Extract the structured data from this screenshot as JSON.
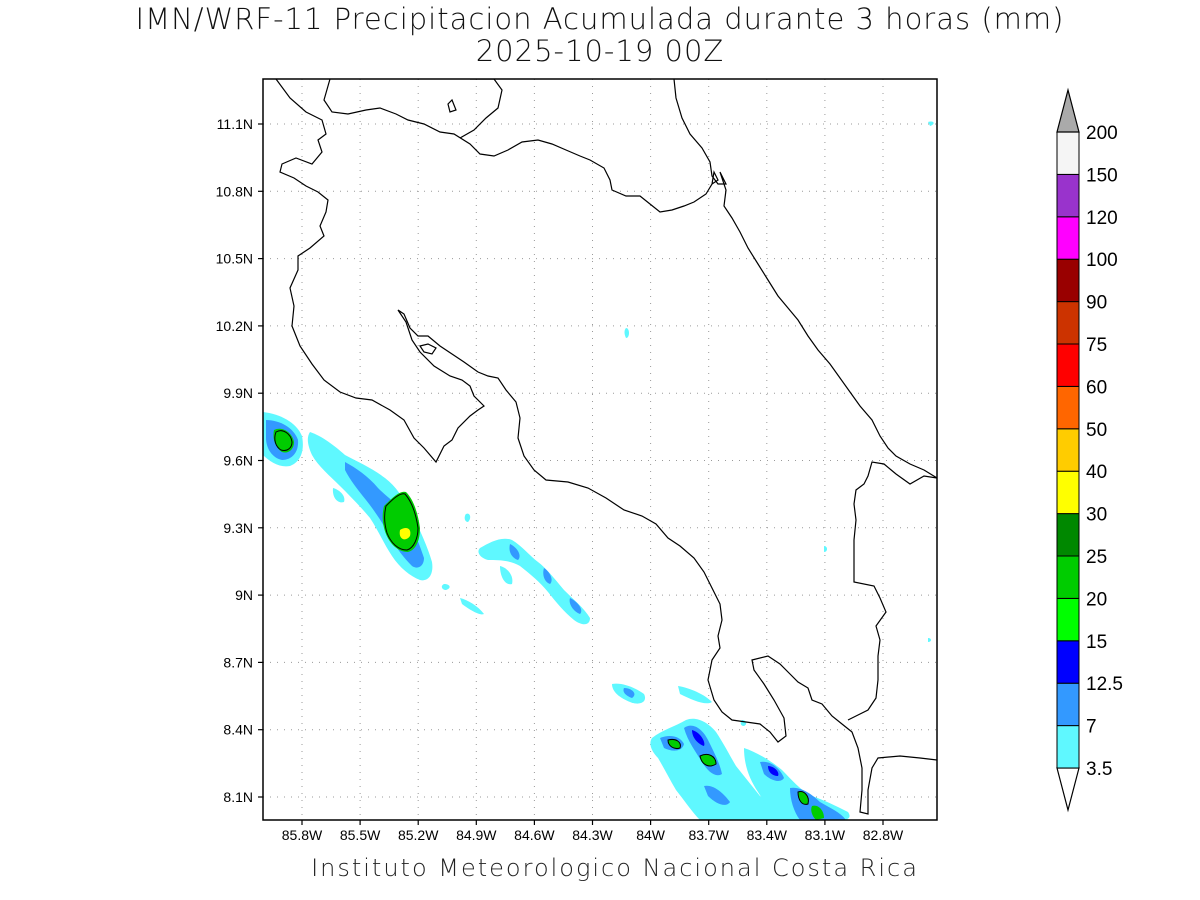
{
  "title": {
    "line1": "IMN/WRF-11 Precipitacion Acumulada durante 3 horas (mm)",
    "line2": "2025-10-19 00Z"
  },
  "footer": "Instituto Meteorologico Nacional Costa Rica",
  "map": {
    "lat_labels": [
      "11.1N",
      "10.8N",
      "10.5N",
      "10.2N",
      "9.9N",
      "9.6N",
      "9.3N",
      "9N",
      "8.7N",
      "8.4N",
      "8.1N"
    ],
    "lon_labels": [
      "85.8W",
      "85.5W",
      "85.2W",
      "84.9W",
      "84.6W",
      "84.3W",
      "84W",
      "83.7W",
      "83.4W",
      "83.1W",
      "82.8W"
    ],
    "gridlines": true,
    "coastline_color": "#000000"
  },
  "legend": {
    "labels": [
      "3.5",
      "7",
      "12.5",
      "15",
      "20",
      "25",
      "30",
      "40",
      "50",
      "60",
      "75",
      "90",
      "100",
      "120",
      "150",
      "200"
    ],
    "colors": [
      "#ffffff",
      "#5ff8ff",
      "#3399ff",
      "#0000ff",
      "#00ff00",
      "#00cc00",
      "#008800",
      "#ffff00",
      "#ffcc00",
      "#ff6600",
      "#ff0000",
      "#cc3300",
      "#990000",
      "#ff00ff",
      "#9933cc",
      "#f5f5f5",
      "#aaaaaa"
    ]
  }
}
